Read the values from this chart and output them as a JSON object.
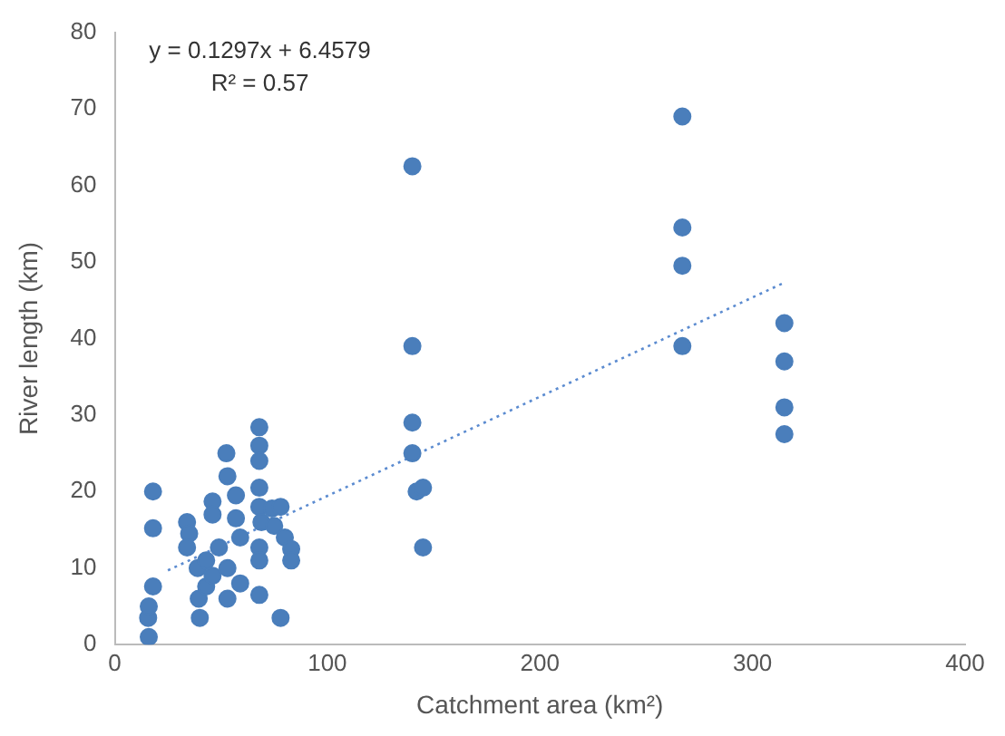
{
  "chart_data": {
    "type": "scatter",
    "xlabel": "Catchment area (km²)",
    "ylabel": "River length (km)",
    "annotations": [
      "y = 0.1297x + 6.4579",
      "R² = 0.57"
    ],
    "xlim": [
      0,
      400
    ],
    "xticks": [
      0,
      100,
      200,
      300,
      400
    ],
    "ylim": [
      0,
      80
    ],
    "yticks": [
      0,
      10,
      20,
      30,
      40,
      50,
      60,
      70,
      80
    ],
    "grid": false,
    "legend": false,
    "marker": "circle",
    "series": [
      {
        "color": "#4a7ebb",
        "x": [
          15.7,
          16,
          16,
          18,
          18,
          18,
          34,
          35,
          34,
          39,
          39.5,
          40,
          43,
          43,
          46,
          46,
          46,
          49,
          52.5,
          53,
          53,
          53,
          57,
          57,
          59,
          59,
          68,
          68,
          68,
          68,
          68,
          69,
          68,
          68,
          68,
          74,
          75,
          78,
          80,
          83,
          78,
          83,
          140,
          140,
          140,
          140,
          142,
          145,
          145,
          267,
          267,
          267,
          267,
          315,
          315,
          315,
          315
        ],
        "values": [
          3.5,
          5,
          1,
          7.6,
          15.2,
          20,
          16,
          14.5,
          12.7,
          10,
          6,
          3.5,
          11,
          7.6,
          18.7,
          17,
          9,
          12.7,
          25,
          22,
          10,
          6,
          19.5,
          16.5,
          8,
          14,
          28.4,
          26,
          24,
          20.5,
          18,
          16,
          12.7,
          11,
          6.5,
          17.8,
          15.5,
          18,
          14,
          12.5,
          3.5,
          11,
          62.5,
          39,
          29,
          25,
          20,
          20.5,
          12.7,
          69,
          54.5,
          49.5,
          39,
          42,
          37,
          31,
          27.5
        ]
      },
      {
        "type": "line",
        "color": "#5b8bd0",
        "line_style": "dotted",
        "marker": "none",
        "x": [
          25,
          315
        ],
        "values": [
          9.7,
          47.3
        ]
      }
    ]
  }
}
